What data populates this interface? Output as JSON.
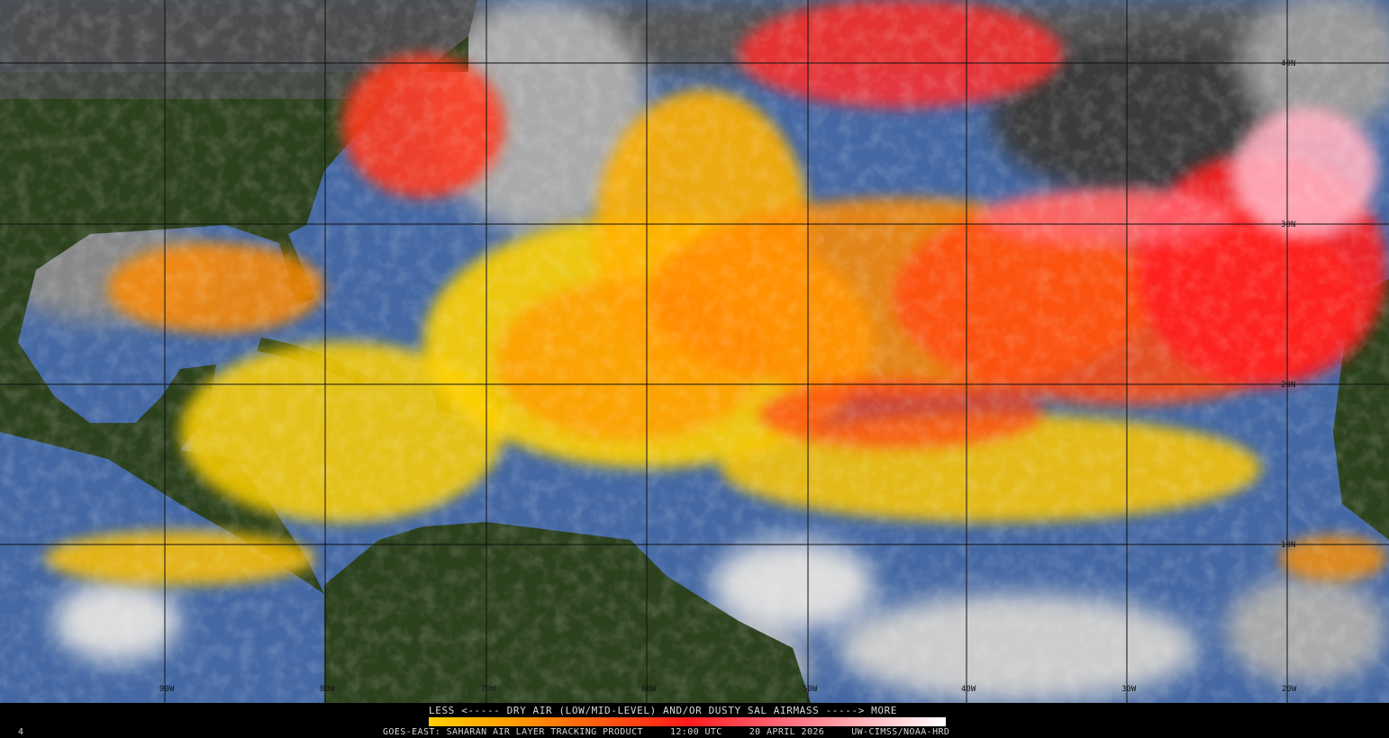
{
  "product": {
    "legend_label": "LESS <----- DRY AIR (LOW/MID-LEVEL) AND/OR DUSTY SAL AIRMASS -----> MORE",
    "colorbar_colors": [
      "#ffd000",
      "#ff9a00",
      "#ff5a10",
      "#ff1a1a",
      "#ff6070",
      "#ffb0b8",
      "#ffffff"
    ],
    "footer_product": "GOES-EAST: SAHARAN AIR LAYER TRACKING PRODUCT",
    "footer_time": "12:00 UTC",
    "footer_date": "20 APRIL 2026",
    "footer_credit": "UW-CIMSS/NOAA-HRD",
    "corner_number": "4"
  },
  "map": {
    "longitude_labels": [
      "90W",
      "80W",
      "70W",
      "60W",
      "50W",
      "40W",
      "30W",
      "20W"
    ],
    "latitude_labels": [
      "40N",
      "30N",
      "20N",
      "10N"
    ],
    "colors": {
      "ocean": "#4468a4",
      "land": "#2b401d",
      "cloud": "#b8b8b8",
      "sal_low": "#ffd000",
      "sal_mid": "#ff8a00",
      "sal_high": "#ff2020",
      "sal_max": "#ffb0c0"
    }
  }
}
